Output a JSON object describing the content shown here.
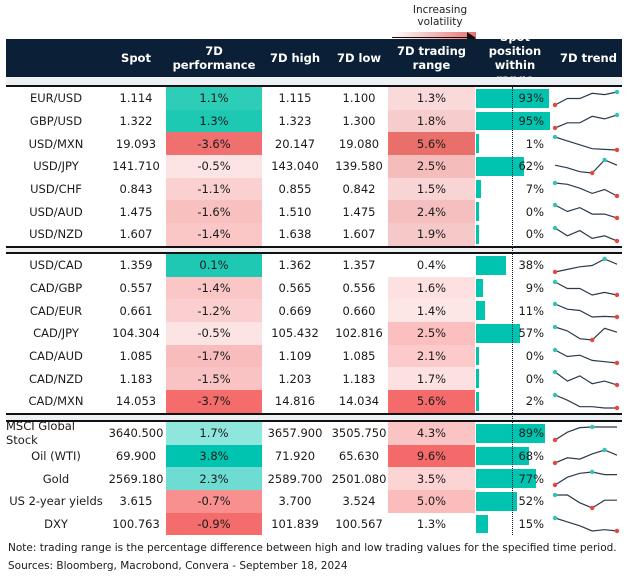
{
  "legend": {
    "label": "Increasing volatility"
  },
  "header": [
    "",
    "Spot",
    "7D performance",
    "7D high",
    "7D low",
    "7D trading range",
    "Spot position within range",
    "7D trend"
  ],
  "colors": {
    "header_bg": "#0b2036",
    "bar": "#00c4b0",
    "trend_line": "#2b3a4a",
    "high_marker": "#2ec4b6",
    "low_marker": "#e8463c"
  },
  "notes": {
    "note": "Note: trading range is the percentage difference between high and low trading values for the specified time period.",
    "sources": "Sources: Bloomberg, Macrobond, Convera - September 18, 2024"
  },
  "chart_data": {
    "type": "table",
    "groups": [
      [
        {
          "name": "EUR/USD",
          "spot": "1.114",
          "perf": "1.1%",
          "perf_color": "#2ecdb8",
          "high": "1.115",
          "low": "1.100",
          "range": "1.3%",
          "range_color": "#f9d9d9",
          "pos": 93,
          "pos_label": "93%",
          "trend": [
            0,
            0.5,
            0.5,
            0.9,
            0.8,
            1
          ]
        },
        {
          "name": "GBP/USD",
          "spot": "1.322",
          "perf": "1.3%",
          "perf_color": "#1ec9b4",
          "high": "1.323",
          "low": "1.300",
          "range": "1.8%",
          "range_color": "#f7cccc",
          "pos": 95,
          "pos_label": "95%",
          "trend": [
            0,
            0.4,
            0.4,
            0.9,
            0.7,
            1
          ]
        },
        {
          "name": "USD/MXN",
          "spot": "19.093",
          "perf": "-3.6%",
          "perf_color": "#f07070",
          "high": "20.147",
          "low": "19.080",
          "range": "5.6%",
          "range_color": "#e9706a",
          "pos": 1,
          "pos_label": "1%",
          "trend": [
            1,
            0.7,
            0.4,
            0.1,
            0.05,
            0
          ]
        },
        {
          "name": "USD/JPY",
          "spot": "141.710",
          "perf": "-0.5%",
          "perf_color": "#fde4e4",
          "high": "143.040",
          "low": "139.580",
          "range": "2.5%",
          "range_color": "#f5bcbc",
          "pos": 62,
          "pos_label": "62%",
          "trend": [
            0.6,
            0.4,
            0.1,
            0,
            1,
            0.6
          ]
        },
        {
          "name": "USD/CHF",
          "spot": "0.843",
          "perf": "-1.1%",
          "perf_color": "#fbd0d0",
          "high": "0.855",
          "low": "0.842",
          "range": "1.5%",
          "range_color": "#f8d4d4",
          "pos": 7,
          "pos_label": "7%",
          "trend": [
            1,
            0.9,
            0.6,
            0.2,
            0.5,
            0
          ]
        },
        {
          "name": "USD/AUD",
          "spot": "1.475",
          "perf": "-1.6%",
          "perf_color": "#f9c0c0",
          "high": "1.510",
          "low": "1.475",
          "range": "2.4%",
          "range_color": "#f5bfbf",
          "pos": 0,
          "pos_label": "0%",
          "trend": [
            1,
            0.5,
            0.8,
            0.3,
            0.3,
            0
          ]
        },
        {
          "name": "USD/NZD",
          "spot": "1.607",
          "perf": "-1.4%",
          "perf_color": "#fac6c6",
          "high": "1.638",
          "low": "1.607",
          "range": "1.9%",
          "range_color": "#f6c9c9",
          "pos": 0,
          "pos_label": "0%",
          "trend": [
            1,
            0.4,
            0.8,
            0.2,
            0.4,
            0
          ]
        }
      ],
      [
        {
          "name": "USD/CAD",
          "spot": "1.359",
          "perf": "0.1%",
          "perf_color": "#1fc8b3",
          "high": "1.362",
          "low": "1.357",
          "range": "0.4%",
          "range_color": "#ffffff",
          "pos": 38,
          "pos_label": "38%",
          "trend": [
            0,
            0.2,
            0.4,
            0.5,
            1,
            0.6
          ]
        },
        {
          "name": "CAD/GBP",
          "spot": "0.557",
          "perf": "-1.4%",
          "perf_color": "#fac6c6",
          "high": "0.565",
          "low": "0.556",
          "range": "1.6%",
          "range_color": "#fde0e0",
          "pos": 9,
          "pos_label": "9%",
          "trend": [
            1,
            0.5,
            0.5,
            0,
            0.2,
            0
          ]
        },
        {
          "name": "CAD/EUR",
          "spot": "0.661",
          "perf": "-1.2%",
          "perf_color": "#fbcfcf",
          "high": "0.669",
          "low": "0.660",
          "range": "1.4%",
          "range_color": "#fde6e6",
          "pos": 11,
          "pos_label": "11%",
          "trend": [
            1,
            0.6,
            0.5,
            0,
            0.05,
            0
          ]
        },
        {
          "name": "CAD/JPY",
          "spot": "104.304",
          "perf": "-0.5%",
          "perf_color": "#fde4e4",
          "high": "105.432",
          "low": "102.816",
          "range": "2.5%",
          "range_color": "#fbbfbf",
          "pos": 57,
          "pos_label": "57%",
          "trend": [
            1,
            0.7,
            0.1,
            0,
            0.9,
            0.6
          ]
        },
        {
          "name": "CAD/AUD",
          "spot": "1.085",
          "perf": "-1.7%",
          "perf_color": "#f8bcbc",
          "high": "1.109",
          "low": "1.085",
          "range": "2.1%",
          "range_color": "#fccaca",
          "pos": 0,
          "pos_label": "0%",
          "trend": [
            1,
            0.5,
            0.6,
            0.2,
            0.1,
            0
          ]
        },
        {
          "name": "CAD/NZD",
          "spot": "1.183",
          "perf": "-1.5%",
          "perf_color": "#f9c3c3",
          "high": "1.203",
          "low": "1.183",
          "range": "1.7%",
          "range_color": "#fde0e0",
          "pos": 0,
          "pos_label": "0%",
          "trend": [
            1,
            0.3,
            0.7,
            0.1,
            0.3,
            0
          ]
        },
        {
          "name": "CAD/MXN",
          "spot": "14.053",
          "perf": "-3.7%",
          "perf_color": "#f46c6c",
          "high": "14.816",
          "low": "14.034",
          "range": "5.6%",
          "range_color": "#f56b6b",
          "pos": 2,
          "pos_label": "2%",
          "trend": [
            1,
            0.6,
            0.1,
            0.1,
            0,
            0
          ]
        }
      ],
      [
        {
          "name": "MSCI Global Stock",
          "spot": "3640.500",
          "perf": "1.7%",
          "perf_color": "#8fe6dc",
          "high": "3657.900",
          "low": "3505.750",
          "range": "4.3%",
          "range_color": "#fbc4c4",
          "pos": 89,
          "pos_label": "89%",
          "trend": [
            0,
            0.6,
            0.95,
            1,
            1,
            1
          ]
        },
        {
          "name": "Oil (WTI)",
          "spot": "69.900",
          "perf": "3.8%",
          "perf_color": "#00c4b0",
          "high": "71.920",
          "low": "65.630",
          "range": "9.6%",
          "range_color": "#f46a6a",
          "pos": 68,
          "pos_label": "68%",
          "trend": [
            0,
            0.4,
            0.3,
            0.7,
            1,
            0.6
          ]
        },
        {
          "name": "Gold",
          "spot": "2569.180",
          "perf": "2.3%",
          "perf_color": "#6edcd2",
          "high": "2589.700",
          "low": "2501.080",
          "range": "3.5%",
          "range_color": "#fdd4d4",
          "pos": 77,
          "pos_label": "77%",
          "trend": [
            0,
            0.6,
            0.9,
            1,
            0.8,
            0.8
          ]
        },
        {
          "name": "US 2-year yields",
          "spot": "3.615",
          "perf": "-0.7%",
          "perf_color": "#f89090",
          "high": "3.700",
          "low": "3.524",
          "range": "5.0%",
          "range_color": "#fbbcbc",
          "pos": 52,
          "pos_label": "52%",
          "trend": [
            1,
            1,
            0.4,
            0,
            0.6,
            0.6
          ]
        },
        {
          "name": "DXY",
          "spot": "100.763",
          "perf": "-0.9%",
          "perf_color": "#f46c6c",
          "high": "101.839",
          "low": "100.567",
          "range": "1.3%",
          "range_color": "#ffffff",
          "pos": 15,
          "pos_label": "15%",
          "trend": [
            1,
            0.7,
            0.4,
            0,
            0.1,
            0
          ]
        }
      ]
    ]
  }
}
